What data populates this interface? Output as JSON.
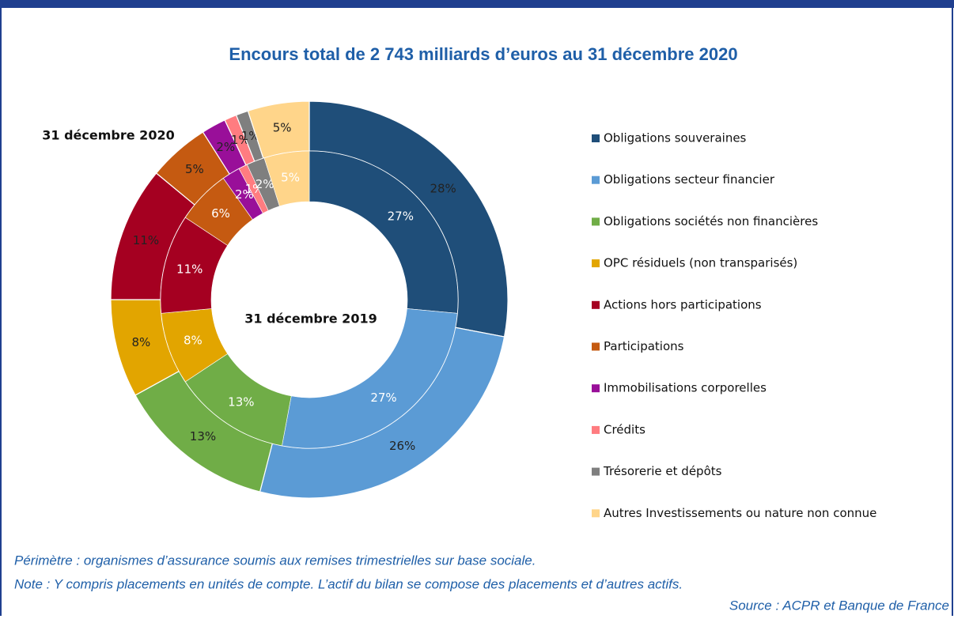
{
  "chart_data": {
    "type": "donut",
    "title": "Encours total de 2 743 milliards d’euros au 31 décembre 2020",
    "categories": [
      "Obligations souveraines",
      "Obligations secteur financier",
      "Obligations sociétés non financières",
      "OPC résiduels (non transparisés)",
      "Actions hors participations",
      "Participations",
      "Immobilisations corporelles",
      "Crédits",
      "Trésorerie et dépôts",
      "Autres Investissements ou nature non connue"
    ],
    "colors": [
      "#1f4e79",
      "#5b9bd5",
      "#70ad47",
      "#e2a500",
      "#a50021",
      "#c55a11",
      "#990f99",
      "#ff7c80",
      "#7f7f7f",
      "#ffd58a"
    ],
    "series": [
      {
        "name": "31 décembre 2020",
        "values": [
          28,
          26,
          13,
          8,
          11,
          5,
          2,
          1,
          1,
          5
        ],
        "value_labels": [
          "28%",
          "26%",
          "13%",
          "8%",
          "11%",
          "5%",
          "2%",
          "1%",
          "1%",
          "5%"
        ]
      },
      {
        "name": "31 décembre 2019",
        "values": [
          27,
          27,
          13,
          8,
          11,
          6,
          2,
          1,
          2,
          5
        ],
        "value_labels": [
          "27%",
          "27%",
          "13%",
          "8%",
          "11%",
          "6%",
          "2%",
          "1%",
          "2%",
          "5%"
        ]
      }
    ],
    "notes": [
      "Périmètre : organismes d’assurance soumis aux remises trimestrielles sur base sociale.",
      "Note : Y compris placements en unités de compte. L’actif du bilan se compose des placements et d’autres actifs."
    ],
    "source": "Source : ACPR et Banque de France"
  }
}
